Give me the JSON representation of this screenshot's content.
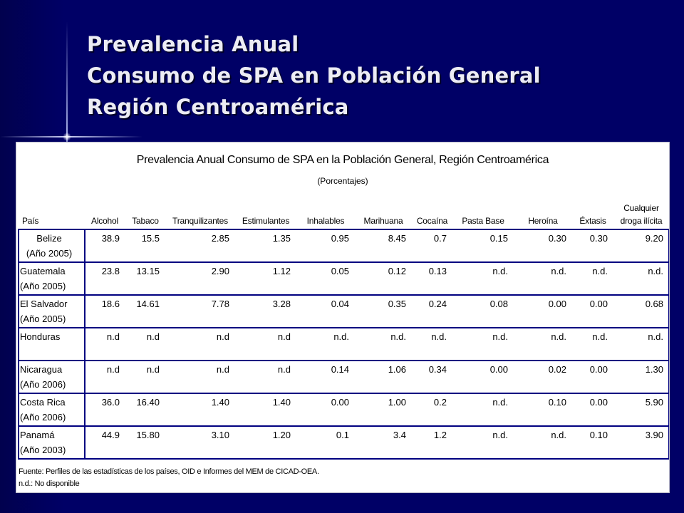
{
  "slide": {
    "title_lines": [
      "Prevalencia Anual",
      "Consumo de SPA en Población General",
      "Región Centroamérica"
    ]
  },
  "table": {
    "title": "Prevalencia Anual Consumo de SPA en la Población General, Región Centroamérica",
    "subtitle": "(Porcentajes)",
    "headers": [
      "País",
      "Alcohol",
      "Tabaco",
      "Tranquilizantes",
      "Estimulantes",
      "Inhalables",
      "Marihuana",
      "Cocaína",
      "Pasta Base",
      "Heroína",
      "Éxtasis",
      "Cualquier droga ilícita"
    ],
    "header_last_lines": [
      "Cualquier",
      "droga ilícita"
    ],
    "rows": [
      {
        "country": "Belize",
        "year": "(Año 2005)",
        "values": [
          "38.9",
          "15.5",
          "2.85",
          "1.35",
          "0.95",
          "8.45",
          "0.7",
          "0.15",
          "0.30",
          "0.30",
          "9.20"
        ]
      },
      {
        "country": "Guatemala",
        "year": "(Año 2005)",
        "values": [
          "23.8",
          "13.15",
          "2.90",
          "1.12",
          "0.05",
          "0.12",
          "0.13",
          "n.d.",
          "n.d.",
          "n.d.",
          "n.d."
        ]
      },
      {
        "country": "El Salvador",
        "year": "(Año 2005)",
        "values": [
          "18.6",
          "14.61",
          "7.78",
          "3.28",
          "0.04",
          "0.35",
          "0.24",
          "0.08",
          "0.00",
          "0.00",
          "0.68"
        ]
      },
      {
        "country": "Honduras",
        "year": "",
        "values": [
          "n.d",
          "n.d",
          "n.d",
          "n.d",
          "n.d.",
          "n.d.",
          "n.d.",
          "n.d.",
          "n.d.",
          "n.d.",
          "n.d."
        ]
      },
      {
        "country": "Nicaragua",
        "year": "(Año 2006)",
        "values": [
          "n.d",
          "n.d",
          "n.d",
          "n.d",
          "0.14",
          "1.06",
          "0.34",
          "0.00",
          "0.02",
          "0.00",
          "1.30"
        ]
      },
      {
        "country": "Costa Rica",
        "year": "(Año 2006)",
        "values": [
          "36.0",
          "16.40",
          "1.40",
          "1.40",
          "0.00",
          "1.00",
          "0.2",
          "n.d.",
          "0.10",
          "0.00",
          "5.90"
        ]
      },
      {
        "country": "Panamá",
        "year": "(Año 2003)",
        "values": [
          "44.9",
          "15.80",
          "3.10",
          "1.20",
          "0.1",
          "3.4",
          "1.2",
          "n.d.",
          "n.d.",
          "0.10",
          "3.90"
        ]
      }
    ],
    "footnotes": [
      "Fuente: Perfiles de las estadísticas de los países, OID e Informes del MEM de CICAD-OEA.",
      "n.d.: No disponible"
    ]
  }
}
